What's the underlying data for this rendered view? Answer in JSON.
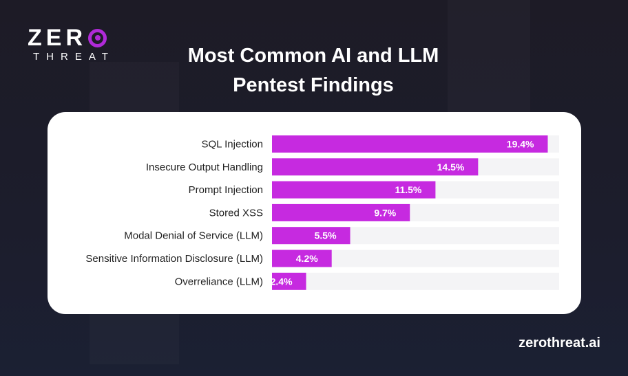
{
  "logo": {
    "word": "ZER",
    "threat": "THREAT"
  },
  "title_lines": [
    "Most Common AI and LLM",
    "Pentest Findings"
  ],
  "footer": "zerothreat.ai",
  "colors": {
    "bar": "#c62ae0",
    "track": "#f4f4f6",
    "label": "#222222",
    "value": "#ffffff"
  },
  "chart_data": {
    "type": "bar",
    "orientation": "horizontal",
    "categories": [
      "SQL Injection",
      "Insecure Output Handling",
      "Prompt Injection",
      "Stored XSS",
      "Modal Denial of Service (LLM)",
      "Sensitive Information Disclosure (LLM)",
      "Overreliance (LLM)"
    ],
    "values": [
      19.4,
      14.5,
      11.5,
      9.7,
      5.5,
      4.2,
      2.4
    ],
    "data_labels": [
      "19.4%",
      "14.5%",
      "11.5%",
      "9.7%",
      "5.5%",
      "4.2%",
      "2.4%"
    ],
    "xlim": [
      0,
      20.2
    ],
    "grid": false
  }
}
